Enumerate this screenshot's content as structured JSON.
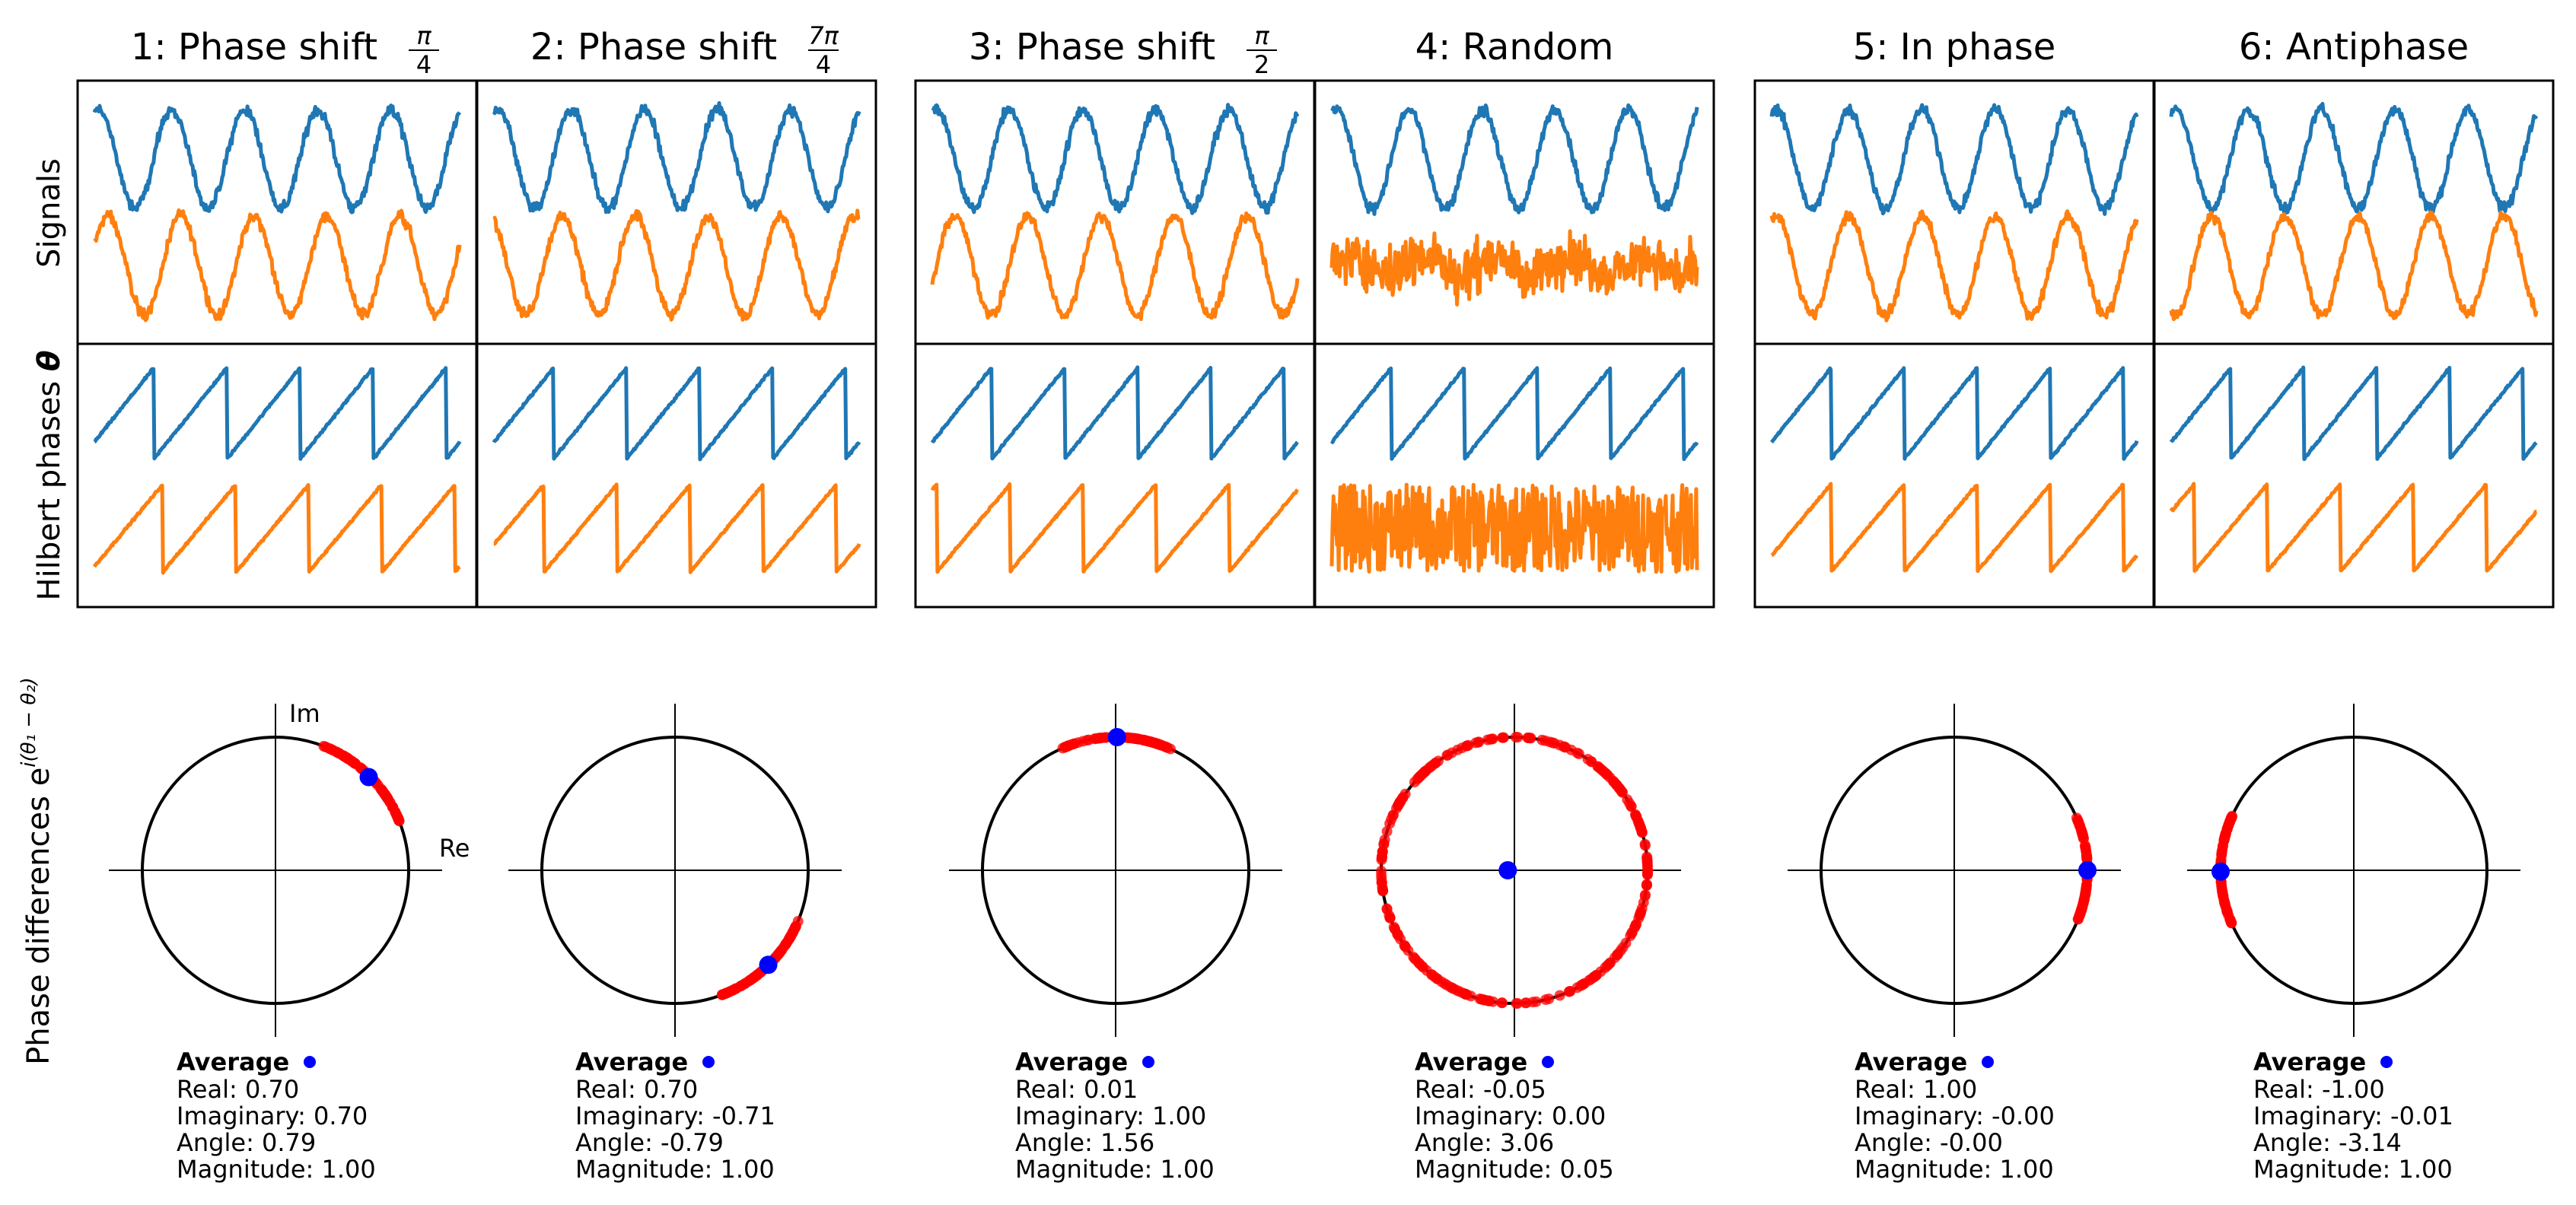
{
  "row_labels": {
    "signals": "Signals",
    "phases": "Hilbert phases θ",
    "diffs": "Phase differences e^{i(θ₁ − θ₂)}"
  },
  "axis_labels": {
    "re": "Re",
    "im": "Im"
  },
  "avg_heading": "Average",
  "stat_labels": {
    "real": "Real:",
    "imag": "Imaginary:",
    "angle": "Angle:",
    "mag": "Magnitude:"
  },
  "colors": {
    "signal1": "#1f77b4",
    "signal2": "#ff7f0e",
    "diff_points": "#ff0000",
    "average": "#0000ff",
    "circle": "#000000"
  },
  "chart_data": [
    {
      "type": "line",
      "panel": 1,
      "title": "1: Phase shift",
      "title_math": {
        "num": "π",
        "den": "4"
      },
      "phase_shift": 0.79,
      "random": false,
      "signals_ylim": [
        -1.2,
        1.2
      ],
      "phase_diff": {
        "type": "scatter",
        "arc_center": 0.79,
        "arc_halfwidth": 0.42,
        "average": {
          "real": "0.70",
          "imag": "0.70",
          "angle": "0.79",
          "mag": "1.00"
        }
      }
    },
    {
      "type": "line",
      "panel": 2,
      "title": "2: Phase shift",
      "title_math": {
        "num": "7π",
        "den": "4"
      },
      "phase_shift": 5.5,
      "random": false,
      "phase_diff": {
        "type": "scatter",
        "arc_center": -0.79,
        "arc_halfwidth": 0.42,
        "average": {
          "real": "0.70",
          "imag": "-0.71",
          "angle": "-0.79",
          "mag": "1.00"
        }
      }
    },
    {
      "type": "line",
      "panel": 3,
      "title": "3: Phase shift",
      "title_math": {
        "num": "π",
        "den": "2"
      },
      "phase_shift": 1.57,
      "random": false,
      "phase_diff": {
        "type": "scatter",
        "arc_center": 1.56,
        "arc_halfwidth": 0.42,
        "average": {
          "real": "0.01",
          "imag": "1.00",
          "angle": "1.56",
          "mag": "1.00"
        }
      }
    },
    {
      "type": "line",
      "panel": 4,
      "title": "4: Random",
      "title_math": null,
      "phase_shift": 0,
      "random": true,
      "phase_diff": {
        "type": "scatter",
        "arc_center": 0,
        "arc_halfwidth": 3.14159,
        "average": {
          "real": "-0.05",
          "imag": "0.00",
          "angle": "3.06",
          "mag": "0.05"
        }
      }
    },
    {
      "type": "line",
      "panel": 5,
      "title": "5: In phase",
      "title_math": null,
      "phase_shift": 0,
      "random": false,
      "phase_diff": {
        "type": "scatter",
        "arc_center": 0.0,
        "arc_halfwidth": 0.42,
        "average": {
          "real": "1.00",
          "imag": "-0.00",
          "angle": "-0.00",
          "mag": "1.00"
        }
      }
    },
    {
      "type": "line",
      "panel": 6,
      "title": "6: Antiphase",
      "title_math": null,
      "phase_shift": 3.14159,
      "random": false,
      "phase_diff": {
        "type": "scatter",
        "arc_center": 3.14159,
        "arc_halfwidth": 0.42,
        "average": {
          "real": "-1.00",
          "imag": "-0.01",
          "angle": "-3.14",
          "mag": "1.00"
        }
      }
    }
  ]
}
